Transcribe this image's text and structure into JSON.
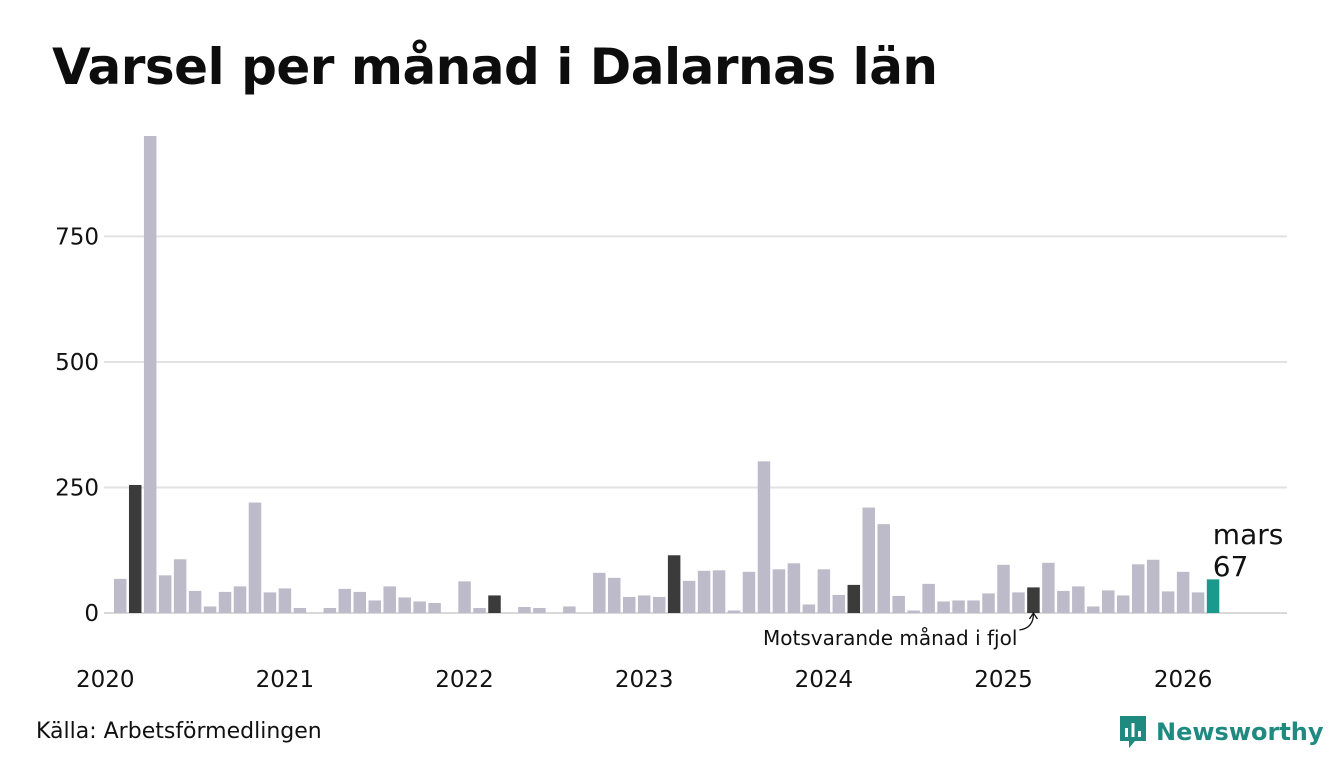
{
  "title": "Varsel per månad i Dalarnas län",
  "source": "Källa: Arbetsförmedlingen",
  "brand": "Newsworthy",
  "colors": {
    "regular": "#bdbbc9",
    "same_month": "#3b3b3b",
    "current": "#1a9a8c",
    "grid": "#e2e2e2",
    "brand": "#1f8a80"
  },
  "chart_data": {
    "type": "bar",
    "title": "Varsel per månad i Dalarnas län",
    "xlabel": "",
    "ylabel": "",
    "ylim": [
      0,
      950
    ],
    "yticks": [
      0,
      250,
      500,
      750
    ],
    "ytick_labels": [
      "0",
      "250",
      "500",
      "750"
    ],
    "grid": true,
    "x_year_labels": [
      "2020",
      "2021",
      "2022",
      "2023",
      "2024",
      "2025",
      "2026"
    ],
    "start": "2020-02",
    "values": [
      68,
      255,
      950,
      75,
      107,
      44,
      13,
      42,
      53,
      220,
      41,
      49,
      10,
      0,
      10,
      48,
      42,
      25,
      53,
      31,
      23,
      20,
      0,
      63,
      10,
      35,
      0,
      12,
      10,
      0,
      13,
      0,
      80,
      70,
      32,
      35,
      32,
      115,
      64,
      84,
      85,
      5,
      82,
      302,
      87,
      99,
      17,
      87,
      36,
      56,
      210,
      177,
      34,
      5,
      58,
      23,
      25,
      25,
      39,
      96,
      41,
      51,
      100,
      44,
      53,
      13,
      45,
      35,
      97,
      106,
      43,
      82,
      41,
      67
    ],
    "highlight_same_month_indices": [
      1,
      13,
      25,
      37,
      49,
      61
    ],
    "current_index": 73,
    "current_label_month": "mars",
    "current_label_value": "67",
    "annotation": "Motsvarande månad i fjol"
  }
}
